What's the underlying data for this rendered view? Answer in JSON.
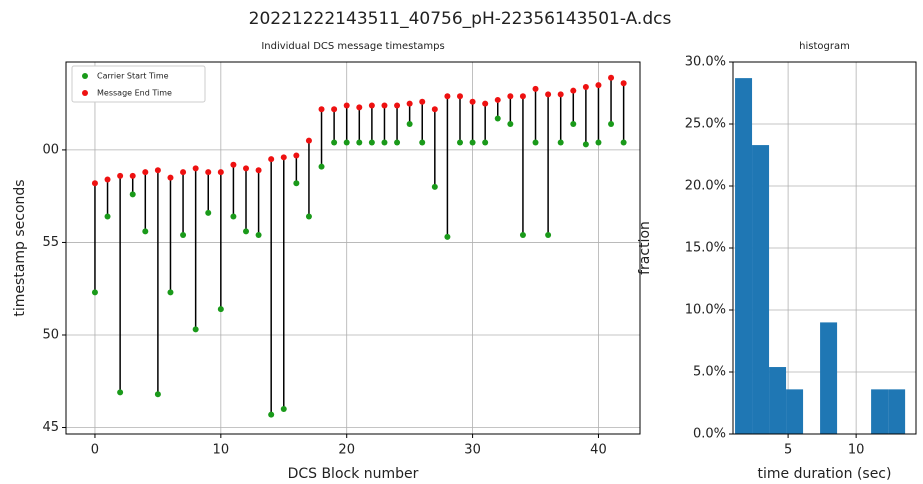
{
  "title": "20221222143511_40756_pH-22356143501-A.dcs",
  "chart_data": [
    {
      "type": "range",
      "title": "Individual DCS message timestamps",
      "x_label": "DCS Block number",
      "y_label": "timestamp seconds",
      "x": [
        0,
        1,
        2,
        3,
        4,
        5,
        6,
        7,
        8,
        9,
        10,
        11,
        12,
        13,
        14,
        15,
        16,
        17,
        18,
        19,
        20,
        21,
        22,
        23,
        24,
        25,
        26,
        27,
        28,
        29,
        30,
        31,
        32,
        33,
        34,
        35,
        36,
        37,
        38,
        39,
        40,
        41,
        42
      ],
      "series": [
        {
          "name": "Carrier Start Time",
          "color": "#1a9a1a",
          "values": [
            52.3,
            56.4,
            46.9,
            57.6,
            55.6,
            46.8,
            52.3,
            55.4,
            50.3,
            56.6,
            51.4,
            56.4,
            55.6,
            55.4,
            45.7,
            46.0,
            58.2,
            56.4,
            59.1,
            60.4,
            60.4,
            60.4,
            60.4,
            60.4,
            60.4,
            61.4,
            60.4,
            58.0,
            55.3,
            60.4,
            60.4,
            60.4,
            61.7,
            61.4,
            55.4,
            60.4,
            55.4,
            60.4,
            61.4,
            60.3,
            60.4,
            61.4,
            60.4
          ]
        },
        {
          "name": "Message End Time",
          "color": "#ee1111",
          "values": [
            58.2,
            58.4,
            58.6,
            58.6,
            58.8,
            58.9,
            58.5,
            58.8,
            59.0,
            58.8,
            58.8,
            59.2,
            59.0,
            58.9,
            59.5,
            59.6,
            59.7,
            60.5,
            62.2,
            62.2,
            62.4,
            62.3,
            62.4,
            62.4,
            62.4,
            62.5,
            62.6,
            62.2,
            62.9,
            62.9,
            62.6,
            62.5,
            62.7,
            62.9,
            62.9,
            63.3,
            63.0,
            63.0,
            63.2,
            63.4,
            63.5,
            63.9,
            63.6
          ]
        }
      ],
      "xlim": [
        -2.3,
        43.3
      ],
      "ylim": [
        44.65,
        64.75
      ],
      "xticks": [
        0,
        10,
        20,
        30,
        40
      ],
      "yticks": [
        45,
        50,
        55,
        {
          "value": 60,
          "label": "00"
        }
      ],
      "grid": true,
      "legend": "upper left",
      "line_color": "#000000"
    },
    {
      "type": "histogram",
      "title": "histogram",
      "x_label": "time duration (sec)",
      "y_label": "fraction",
      "bins": [
        1.1,
        2.35,
        3.6,
        4.85,
        6.1,
        7.35,
        8.6,
        9.85,
        11.1,
        12.35,
        13.6
      ],
      "values": [
        28.7,
        23.3,
        5.4,
        3.6,
        0,
        9.0,
        0,
        0,
        3.6,
        3.6
      ],
      "color": "#1f77b4",
      "xlim": [
        0.95,
        14.4
      ],
      "ylim": [
        0,
        30
      ],
      "xticks": [
        5,
        10
      ],
      "yticks": [
        {
          "value": 0,
          "label": "0.0%"
        },
        {
          "value": 5,
          "label": "5.0%"
        },
        {
          "value": 10,
          "label": "10.0%"
        },
        {
          "value": 15,
          "label": "15.0%"
        },
        {
          "value": 20,
          "label": "20.0%"
        },
        {
          "value": 25,
          "label": "25.0%"
        },
        {
          "value": 30,
          "label": "30.0%"
        }
      ],
      "grid": true
    }
  ]
}
